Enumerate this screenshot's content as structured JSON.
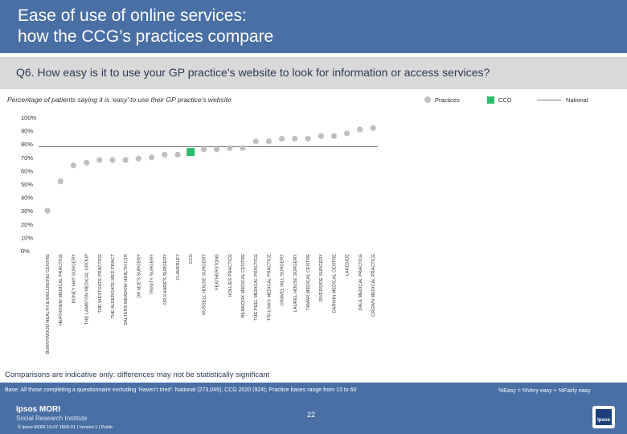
{
  "header": {
    "title_line1": "Ease of use of online services:",
    "title_line2": "how the CCG’s practices compare"
  },
  "question": "Q6. How easy is it to use your GP practice’s website to look for information or access services?",
  "subtitle": "Percentage of patients saying it is ‘easy’ to use their GP practice’s website",
  "legend": {
    "practices": "Practices",
    "ccg": "CCG",
    "national": "National"
  },
  "colors": {
    "header": "#4a6fa5",
    "practice_marker": "#bfbfbf",
    "ccg_marker": "#2ebd6b",
    "national_line": "#7f7f7f"
  },
  "chart_data": {
    "type": "scatter",
    "title": "",
    "xlabel": "",
    "ylabel": "",
    "ylim": [
      0,
      100
    ],
    "yticks": [
      "0%",
      "10%",
      "20%",
      "30%",
      "40%",
      "50%",
      "60%",
      "70%",
      "80%",
      "90%",
      "100%"
    ],
    "grid": false,
    "national_value": 78,
    "categories": [
      "BURNTWOOD HEALTH & WELLBEING CENTRE",
      "HEATHVIEW MEDICAL PRACTICE",
      "BONEY HAY SURGERY",
      "THE LAMBTON MEDICAL GROUP",
      "THE WESTGATE PRACTICE",
      "THE ALDERGATE MED PRACT",
      "SALTERS MEADOW HEALTH CTR",
      "DR MJE'S SURGERY",
      "TRINITY SURGERY",
      "DR KHARE'S SURGERY",
      "CLAVERLEY",
      "CCG",
      "RUSSELL HOUSE SURGERY",
      "FEATHERSTONE",
      "HOLLIES PRACTICE",
      "BILBROOK MEDICAL CENTRE",
      "THE PEEL MEDICAL PRACTICE",
      "TRI-LINKS MEDICAL PRACTICE",
      "GRAVEL HILL SURGERY",
      "LAUREL HOUSE SURGERY",
      "TAMAR MEDICAL CENTRE",
      "RIVERSIDE SURGERY",
      "DARWIN MEDICAL CENTRE",
      "LAKESIDE",
      "DALE MEDICAL PRACTICE",
      "CROWN MEDICAL PRACTICE"
    ],
    "values": [
      30,
      52,
      64,
      66,
      68,
      68,
      68,
      69,
      70,
      72,
      72,
      74,
      76,
      76,
      77,
      77,
      82,
      82,
      84,
      84,
      84,
      86,
      86,
      88,
      91,
      92
    ],
    "ccg_index": 11
  },
  "comparisons_note": "Comparisons are indicative only: differences may not be statistically significant",
  "base_note": "Base: All those completing a questionnaire excluding ‘Haven’t tried’: National (273,049); CCG 2020 (924); Practice bases range from 13 to 60",
  "easy_definition": "%Easy = %Very easy + %Fairly easy",
  "footer": {
    "logo_line1": "Ipsos MORI",
    "logo_line2": "Social Research Institute",
    "copyright": "© Ipsos MORI     19-07 1809-01 | Version 1 | Public",
    "page_number": "22",
    "ipsos_logo_text": "Ipsos"
  }
}
